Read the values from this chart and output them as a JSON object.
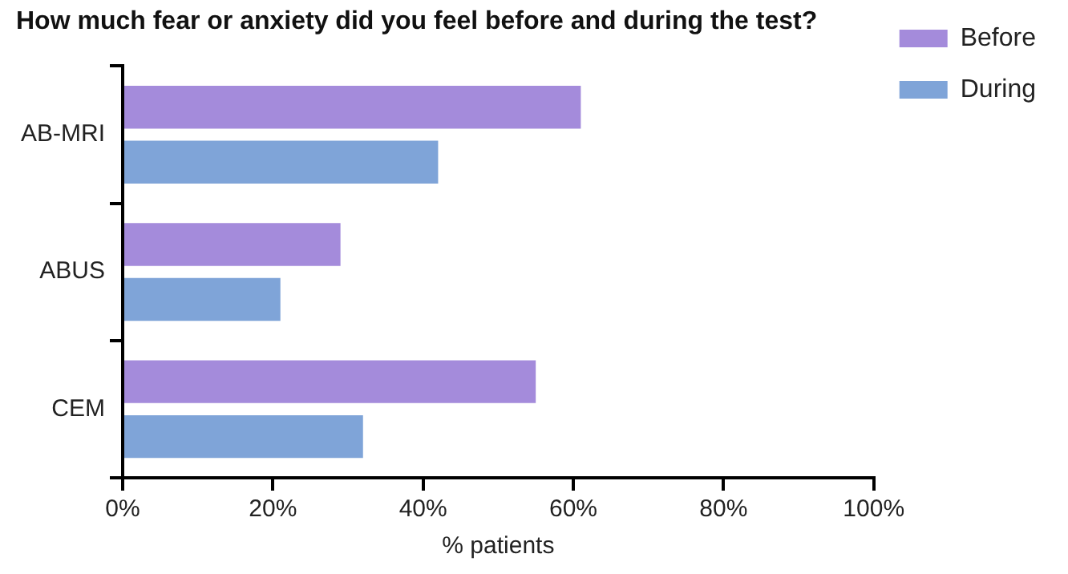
{
  "chart_data": {
    "type": "bar",
    "orientation": "horizontal",
    "title": "How much fear or anxiety did you feel before and during the test?",
    "xlabel": "% patients",
    "categories": [
      "AB-MRI",
      "ABUS",
      "CEM"
    ],
    "series": [
      {
        "name": "Before",
        "color": "#a48bdb",
        "values": [
          61,
          29,
          55
        ]
      },
      {
        "name": "During",
        "color": "#7fa4d8",
        "values": [
          42,
          21,
          32
        ]
      }
    ],
    "xlim": [
      0,
      100
    ],
    "xticks": [
      {
        "value": 0,
        "label": "0%"
      },
      {
        "value": 20,
        "label": "20%"
      },
      {
        "value": 40,
        "label": "40%"
      },
      {
        "value": 60,
        "label": "60%"
      },
      {
        "value": 80,
        "label": "80%"
      },
      {
        "value": 100,
        "label": "100%"
      }
    ],
    "grid": false,
    "legend": "top right"
  }
}
